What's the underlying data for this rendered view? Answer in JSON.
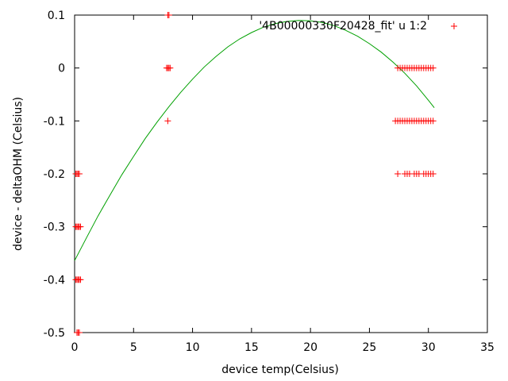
{
  "chart_data": {
    "type": "scatter",
    "title": "",
    "xlabel": "device temp(Celsius)",
    "ylabel": "device - deltaOHM (Celsius)",
    "xlim": [
      0,
      35
    ],
    "ylim": [
      -0.5,
      0.1
    ],
    "xticks": [
      0,
      5,
      10,
      15,
      20,
      25,
      30,
      35
    ],
    "xtick_labels": [
      "0",
      "5",
      "10",
      "15",
      "20",
      "25",
      "30",
      "35"
    ],
    "yticks": [
      0.1,
      0,
      -0.1,
      -0.2,
      -0.3,
      -0.4,
      -0.5
    ],
    "ytick_labels": [
      "0.1",
      "0",
      "-0.1",
      "-0.2",
      "-0.3",
      "-0.4",
      "-0.5"
    ],
    "grid": false,
    "legend_position": "top-right",
    "series": [
      {
        "name": "'4B00000330F20428_fit' u 1:2",
        "kind": "scatter",
        "marker": "plus",
        "color": "#ff0000",
        "points": [
          [
            0.1,
            -0.2
          ],
          [
            0.2,
            -0.2
          ],
          [
            0.3,
            -0.2
          ],
          [
            0.4,
            -0.2
          ],
          [
            0.1,
            -0.3
          ],
          [
            0.2,
            -0.3
          ],
          [
            0.3,
            -0.3
          ],
          [
            0.4,
            -0.3
          ],
          [
            0.5,
            -0.3
          ],
          [
            0.1,
            -0.4
          ],
          [
            0.2,
            -0.4
          ],
          [
            0.3,
            -0.4
          ],
          [
            0.4,
            -0.4
          ],
          [
            0.5,
            -0.4
          ],
          [
            0.2,
            -0.5
          ],
          [
            0.3,
            -0.5
          ],
          [
            0.4,
            -0.5
          ],
          [
            7.9,
            0.1
          ],
          [
            8.0,
            0.1
          ],
          [
            7.8,
            0.0
          ],
          [
            7.9,
            0.0
          ],
          [
            8.0,
            0.0
          ],
          [
            8.1,
            0.0
          ],
          [
            7.9,
            -0.1
          ],
          [
            27.4,
            0.0
          ],
          [
            27.6,
            0.0
          ],
          [
            27.8,
            0.0
          ],
          [
            28.0,
            0.0
          ],
          [
            28.2,
            0.0
          ],
          [
            28.4,
            0.0
          ],
          [
            28.6,
            0.0
          ],
          [
            28.8,
            0.0
          ],
          [
            29.0,
            0.0
          ],
          [
            29.2,
            0.0
          ],
          [
            29.4,
            0.0
          ],
          [
            29.6,
            0.0
          ],
          [
            29.8,
            0.0
          ],
          [
            30.0,
            0.0
          ],
          [
            30.2,
            0.0
          ],
          [
            30.4,
            0.0
          ],
          [
            27.2,
            -0.1
          ],
          [
            27.4,
            -0.1
          ],
          [
            27.6,
            -0.1
          ],
          [
            27.8,
            -0.1
          ],
          [
            28.0,
            -0.1
          ],
          [
            28.2,
            -0.1
          ],
          [
            28.4,
            -0.1
          ],
          [
            28.6,
            -0.1
          ],
          [
            28.8,
            -0.1
          ],
          [
            29.0,
            -0.1
          ],
          [
            29.2,
            -0.1
          ],
          [
            29.4,
            -0.1
          ],
          [
            29.6,
            -0.1
          ],
          [
            29.8,
            -0.1
          ],
          [
            30.0,
            -0.1
          ],
          [
            30.2,
            -0.1
          ],
          [
            30.4,
            -0.1
          ],
          [
            27.4,
            -0.2
          ],
          [
            28.0,
            -0.2
          ],
          [
            28.2,
            -0.2
          ],
          [
            28.4,
            -0.2
          ],
          [
            28.8,
            -0.2
          ],
          [
            29.0,
            -0.2
          ],
          [
            29.2,
            -0.2
          ],
          [
            29.6,
            -0.2
          ],
          [
            29.8,
            -0.2
          ],
          [
            30.0,
            -0.2
          ],
          [
            30.2,
            -0.2
          ],
          [
            30.4,
            -0.2
          ]
        ]
      },
      {
        "name": "",
        "kind": "line",
        "color": "#00a000",
        "points": [
          [
            0,
            -0.364
          ],
          [
            1,
            -0.321
          ],
          [
            2,
            -0.279
          ],
          [
            3,
            -0.24
          ],
          [
            4,
            -0.202
          ],
          [
            5,
            -0.167
          ],
          [
            6,
            -0.133
          ],
          [
            7,
            -0.102
          ],
          [
            8,
            -0.073
          ],
          [
            9,
            -0.046
          ],
          [
            10,
            -0.021
          ],
          [
            11,
            0.002
          ],
          [
            12,
            0.022
          ],
          [
            13,
            0.04
          ],
          [
            14,
            0.055
          ],
          [
            15,
            0.067
          ],
          [
            16,
            0.077
          ],
          [
            17,
            0.084
          ],
          [
            18,
            0.088
          ],
          [
            19,
            0.09
          ],
          [
            20,
            0.089
          ],
          [
            21,
            0.086
          ],
          [
            22,
            0.08
          ],
          [
            23,
            0.071
          ],
          [
            24,
            0.06
          ],
          [
            25,
            0.046
          ],
          [
            26,
            0.03
          ],
          [
            27,
            0.011
          ],
          [
            28,
            -0.01
          ],
          [
            29,
            -0.034
          ],
          [
            30,
            -0.061
          ],
          [
            30.5,
            -0.075
          ]
        ]
      }
    ]
  }
}
